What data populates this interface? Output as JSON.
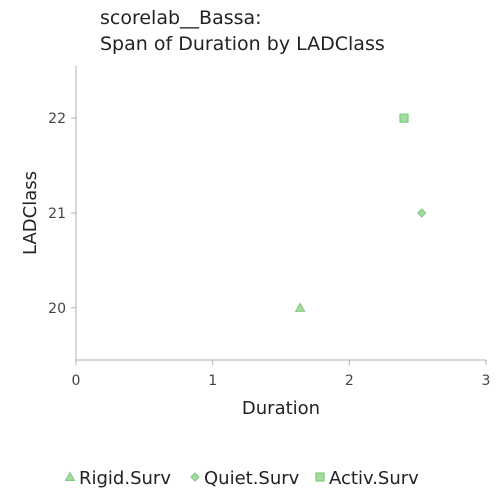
{
  "chart_data": {
    "type": "scatter",
    "title": [
      "scorelab__Bassa:",
      "Span of Duration by LADClass"
    ],
    "xlabel": "Duration",
    "ylabel": "LADClass",
    "xlim": [
      0,
      3
    ],
    "ylim": [
      19.45,
      22.55
    ],
    "x_ticks": [
      0,
      1,
      2,
      3
    ],
    "y_ticks": [
      20,
      21,
      22
    ],
    "grid": false,
    "legend_position": "bottom",
    "marker_color": "#a6dba0",
    "marker_stroke": "#7fc97f",
    "series": [
      {
        "name": "Rigid.Surv",
        "marker": "triangle",
        "points": [
          {
            "x": 1.64,
            "y": 20
          }
        ]
      },
      {
        "name": "Quiet.Surv",
        "marker": "diamond",
        "points": [
          {
            "x": 2.53,
            "y": 21
          }
        ]
      },
      {
        "name": "Activ.Surv",
        "marker": "square",
        "points": [
          {
            "x": 2.4,
            "y": 22
          }
        ]
      }
    ]
  }
}
